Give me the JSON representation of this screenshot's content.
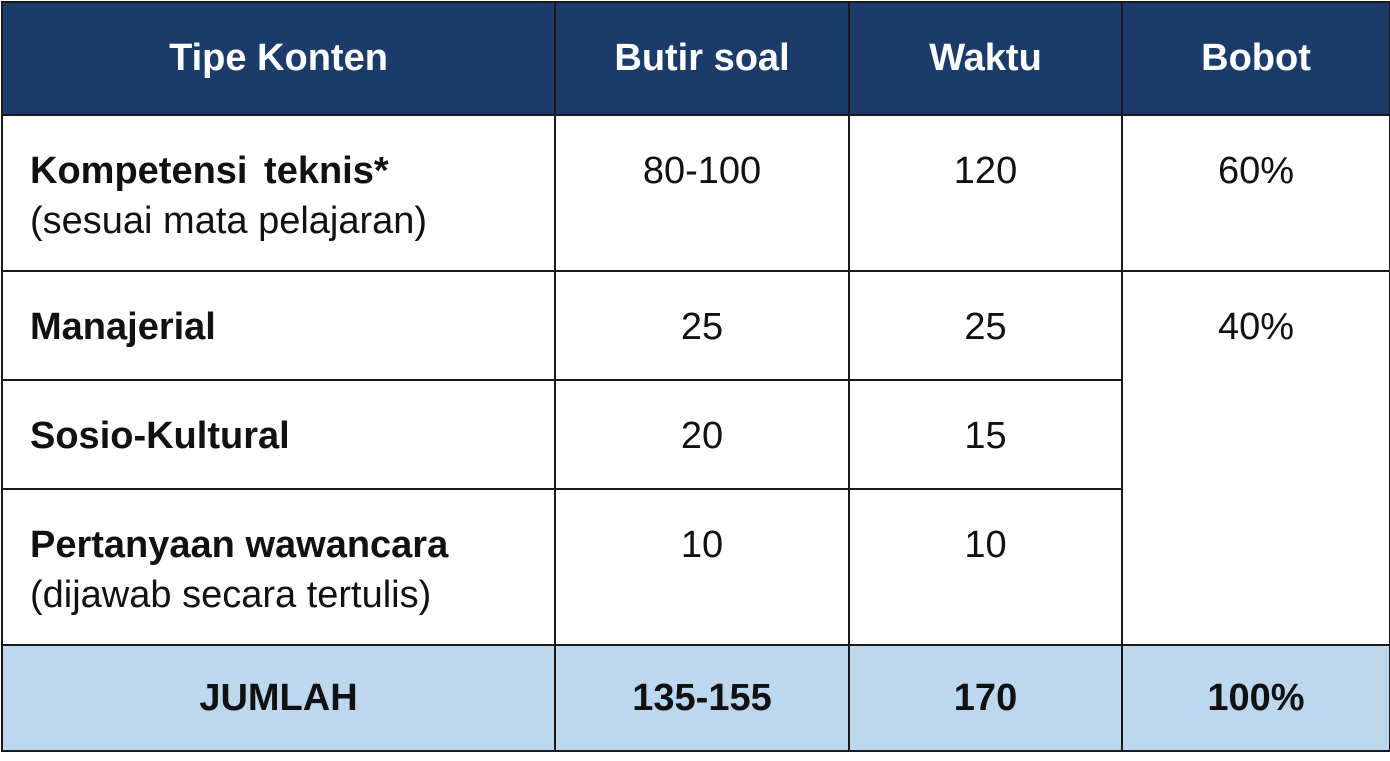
{
  "table": {
    "headers": [
      "Tipe Konten",
      "Butir soal",
      "Waktu",
      "Bobot"
    ],
    "rows": [
      {
        "label": "Kompetensi  teknis*",
        "sublabel": "(sesuai mata pelajaran)",
        "butir_soal": "80-100",
        "waktu": "120",
        "bobot": "60%"
      },
      {
        "label": "Manajerial",
        "sublabel": "",
        "butir_soal": "25",
        "waktu": "25",
        "bobot": "40%"
      },
      {
        "label": "Sosio-Kultural",
        "sublabel": "",
        "butir_soal": "20",
        "waktu": "15"
      },
      {
        "label": "Pertanyaan wawancara",
        "sublabel": "(dijawab secara tertulis)",
        "butir_soal": "10",
        "waktu": "10"
      }
    ],
    "total": {
      "label": "JUMLAH",
      "butir_soal": "135-155",
      "waktu": "170",
      "bobot": "100%"
    }
  },
  "colors": {
    "header_bg": "#1b3c6b",
    "header_text": "#ffffff",
    "total_bg": "#bdd7ee",
    "border": "#1a1a1a"
  }
}
